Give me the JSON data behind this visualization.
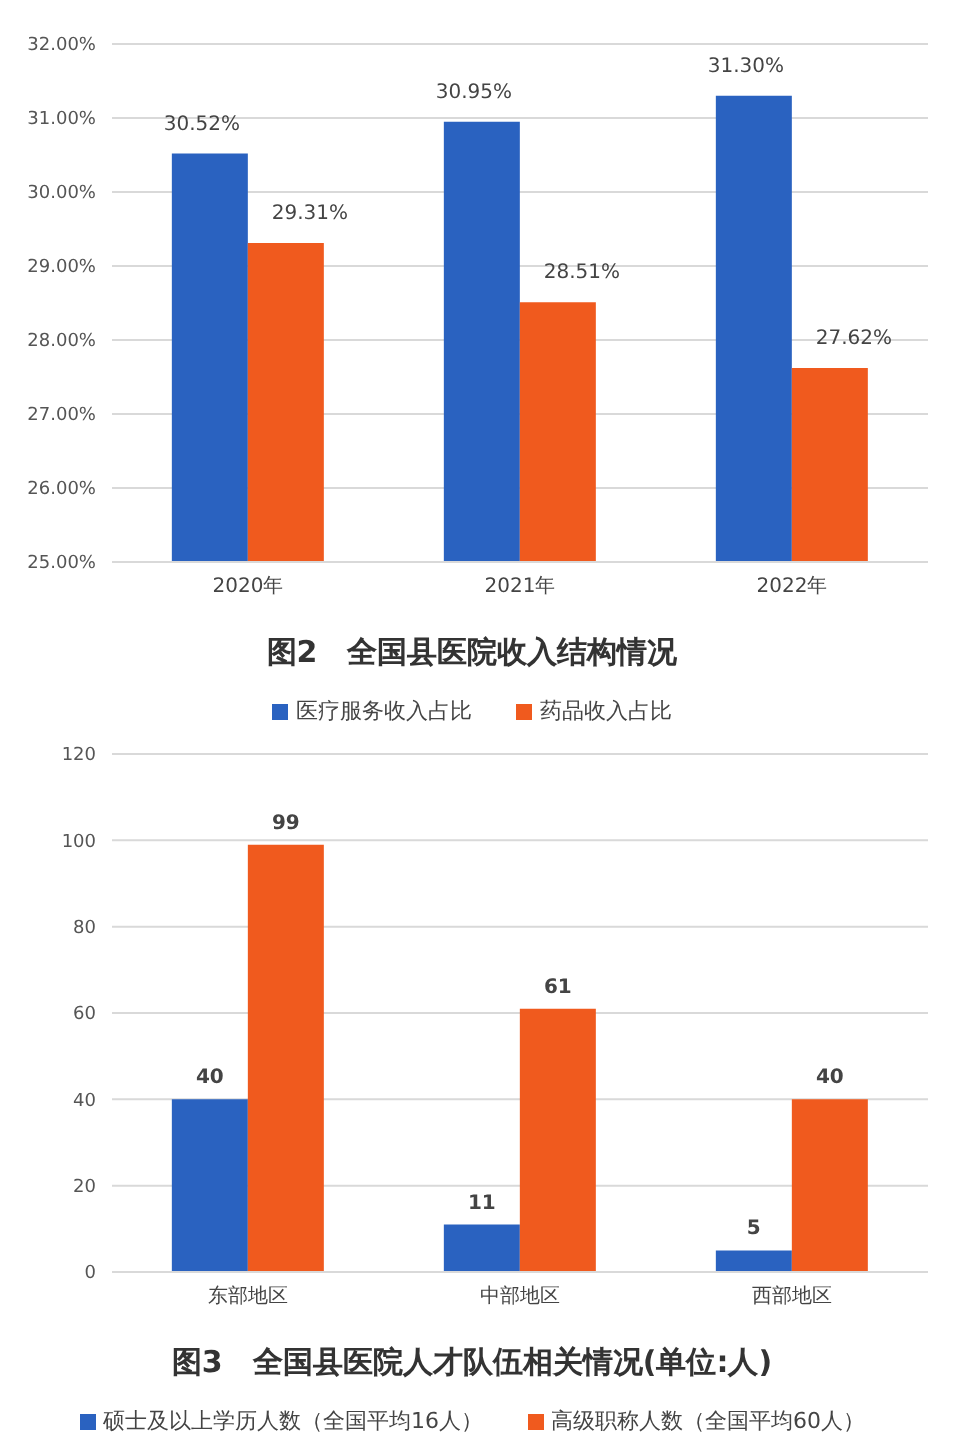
{
  "chart_data": [
    {
      "type": "bar",
      "title": "图2　全国县医院收入结构情况",
      "categories": [
        "2020年",
        "2021年",
        "2022年"
      ],
      "series": [
        {
          "name": "医疗服务收入占比",
          "color": "#2a62c0",
          "values": [
            30.52,
            30.95,
            31.3
          ],
          "value_labels": [
            "30.52%",
            "30.95%",
            "31.30%"
          ]
        },
        {
          "name": "药品收入占比",
          "color": "#f05a1e",
          "values": [
            29.31,
            28.51,
            27.62
          ],
          "value_labels": [
            "29.31%",
            "28.51%",
            "27.62%"
          ]
        }
      ],
      "ylim": [
        25,
        32
      ],
      "yticks": [
        {
          "value": 25,
          "label": "25.00%"
        },
        {
          "value": 26,
          "label": "26.00%"
        },
        {
          "value": 27,
          "label": "27.00%"
        },
        {
          "value": 28,
          "label": "28.00%"
        },
        {
          "value": 29,
          "label": "29.00%"
        },
        {
          "value": 30,
          "label": "30.00%"
        },
        {
          "value": 31,
          "label": "31.00%"
        },
        {
          "value": 32,
          "label": "32.00%"
        }
      ],
      "grid": "y",
      "legend": "bottom"
    },
    {
      "type": "bar",
      "title": "图3　全国县医院人才队伍相关情况(单位:人)",
      "categories": [
        "东部地区",
        "中部地区",
        "西部地区"
      ],
      "series": [
        {
          "name": "硕士及以上学历人数（全国平均16人）",
          "color": "#2a62c0",
          "values": [
            40,
            11,
            5
          ]
        },
        {
          "name": "高级职称人数（全国平均60人）",
          "color": "#f05a1e",
          "values": [
            99,
            61,
            40
          ]
        }
      ],
      "ylim": [
        0,
        120
      ],
      "yticks": [
        0,
        20,
        40,
        60,
        80,
        100,
        120
      ],
      "grid": "y",
      "legend": "bottom",
      "data_labels": true
    }
  ]
}
